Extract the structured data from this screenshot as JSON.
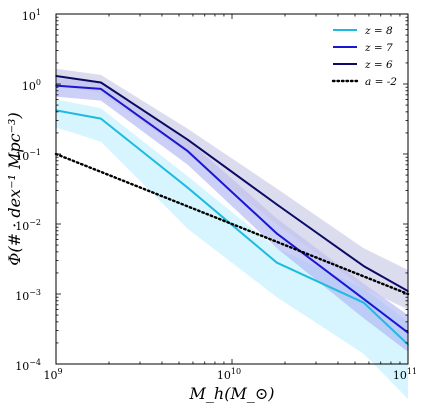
{
  "chart_data": {
    "type": "line",
    "title": "",
    "xlabel": "M_h(M_⊙)",
    "ylabel": "Φ(# · dex⁻¹ Mpc⁻³)",
    "xscale": "log",
    "yscale": "log",
    "xlim": [
      1000000000.0,
      100000000000.0
    ],
    "ylim": [
      0.0001,
      10
    ],
    "grid": false,
    "legend_position": "top-right",
    "x_ticks": [
      {
        "value": 1000000000.0,
        "base": "10",
        "exp": "9"
      },
      {
        "value": 10000000000.0,
        "base": "10",
        "exp": "10"
      },
      {
        "value": 100000000000.0,
        "base": "10",
        "exp": "11"
      }
    ],
    "y_ticks": [
      {
        "value": 0.0001,
        "base": "10",
        "exp": "−4"
      },
      {
        "value": 0.001,
        "base": "10",
        "exp": "−3"
      },
      {
        "value": 0.01,
        "base": "10",
        "exp": "−2"
      },
      {
        "value": 0.1,
        "base": "10",
        "exp": "−1"
      },
      {
        "value": 1,
        "base": "10",
        "exp": "0"
      },
      {
        "value": 10,
        "base": "10",
        "exp": "1"
      }
    ],
    "series": [
      {
        "name": "z = 8",
        "color": "#1ebbe0",
        "band_color": "#bdeffd",
        "style": "solid",
        "x": [
          1000000000.0,
          1800000000.0,
          5600000000.0,
          18000000000.0,
          56000000000.0,
          100000000000.0
        ],
        "y": [
          0.42,
          0.32,
          0.033,
          0.0028,
          0.00075,
          0.00019
        ],
        "band_low": [
          0.24,
          0.15,
          0.0085,
          0.0009,
          0.00014,
          3.16e-05
        ],
        "band_high": [
          0.6,
          0.45,
          0.048,
          0.0045,
          0.0012,
          0.0004
        ]
      },
      {
        "name": "z = 7",
        "color": "#1a16d4",
        "band_color": "#aab1f2",
        "style": "solid",
        "x": [
          1000000000.0,
          1800000000.0,
          5600000000.0,
          18000000000.0,
          56000000000.0,
          100000000000.0
        ],
        "y": [
          0.95,
          0.85,
          0.11,
          0.0073,
          0.00085,
          0.00028
        ],
        "band_low": [
          0.66,
          0.58,
          0.07,
          0.0045,
          0.00045,
          0.00015
        ],
        "band_high": [
          1.2,
          1.1,
          0.16,
          0.012,
          0.0014,
          0.0005
        ]
      },
      {
        "name": "z = 6",
        "color": "#0b0b66",
        "band_color": "#c5c5e4",
        "style": "solid",
        "x": [
          1000000000.0,
          1800000000.0,
          5600000000.0,
          18000000000.0,
          56000000000.0,
          100000000000.0
        ],
        "y": [
          1.3,
          1.05,
          0.16,
          0.019,
          0.0025,
          0.0011
        ],
        "band_low": [
          0.95,
          0.75,
          0.1,
          0.01,
          0.0012,
          0.0006
        ],
        "band_high": [
          1.65,
          1.35,
          0.23,
          0.032,
          0.0045,
          0.0022
        ]
      },
      {
        "name": "a = -2",
        "color": "#000000",
        "style": "dotted",
        "x": [
          1000000000.0,
          100000000000.0
        ],
        "y": [
          0.1,
          0.001
        ]
      }
    ]
  }
}
